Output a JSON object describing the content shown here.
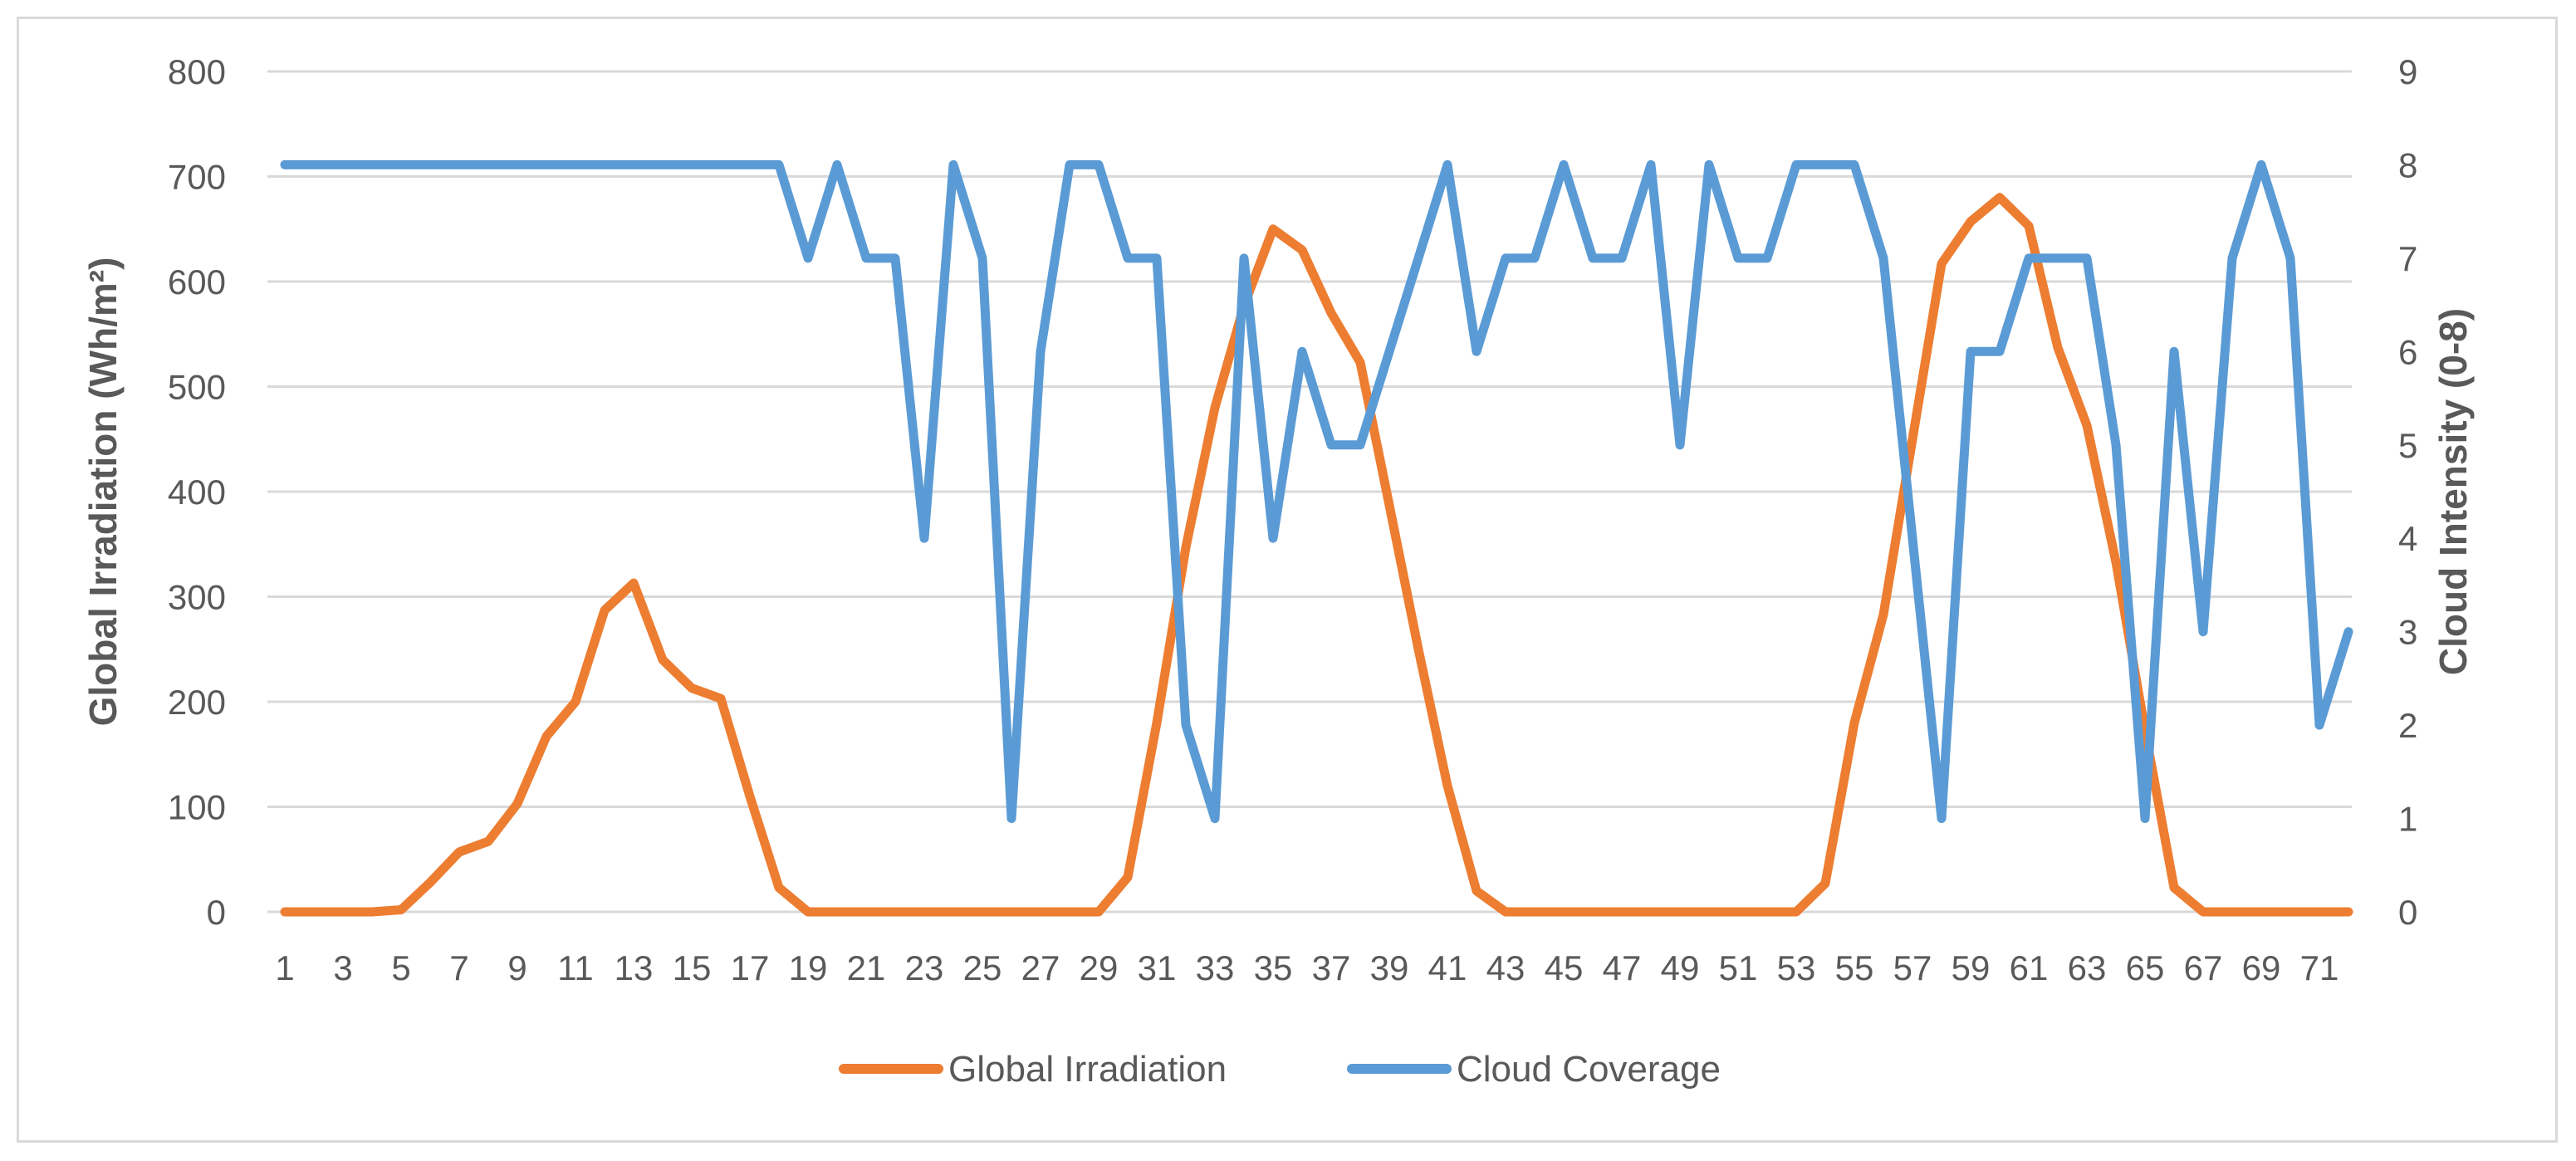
{
  "chart_data": {
    "type": "line",
    "title": "",
    "xlabel": "",
    "ylabel": "Global Irradiation (Wh/m²)",
    "y2label": "Cloud Intensity (0-8)",
    "ylim": [
      0,
      800
    ],
    "y2lim": [
      0,
      9
    ],
    "yticks": [
      "0",
      "100",
      "200",
      "300",
      "400",
      "500",
      "600",
      "700",
      "800"
    ],
    "y2ticks": [
      "0",
      "1",
      "2",
      "3",
      "4",
      "5",
      "6",
      "7",
      "8",
      "9"
    ],
    "x": [
      1,
      2,
      3,
      4,
      5,
      6,
      7,
      8,
      9,
      10,
      11,
      12,
      13,
      14,
      15,
      16,
      17,
      18,
      19,
      20,
      21,
      22,
      23,
      24,
      25,
      26,
      27,
      28,
      29,
      30,
      31,
      32,
      33,
      34,
      35,
      36,
      37,
      38,
      39,
      40,
      41,
      42,
      43,
      44,
      45,
      46,
      47,
      48,
      49,
      50,
      51,
      52,
      53,
      54,
      55,
      56,
      57,
      58,
      59,
      60,
      61,
      62,
      63,
      64,
      65,
      66,
      67,
      68,
      69,
      70,
      71,
      72
    ],
    "xtick_labels": [
      "1",
      "3",
      "5",
      "7",
      "9",
      "11",
      "13",
      "15",
      "17",
      "19",
      "21",
      "23",
      "25",
      "27",
      "29",
      "31",
      "33",
      "35",
      "37",
      "39",
      "41",
      "43",
      "45",
      "47",
      "49",
      "51",
      "53",
      "55",
      "57",
      "59",
      "61",
      "63",
      "65",
      "67",
      "69",
      "71"
    ],
    "grid": true,
    "legend_position": "bottom",
    "series": [
      {
        "name": "Global Irradiation",
        "axis": "left",
        "color": "#ED7D31",
        "values": [
          0,
          0,
          0,
          0,
          2,
          28,
          57,
          67,
          103,
          167,
          200,
          287,
          313,
          240,
          213,
          203,
          110,
          23,
          0,
          0,
          0,
          0,
          0,
          0,
          0,
          0,
          0,
          0,
          0,
          33,
          180,
          347,
          480,
          577,
          650,
          630,
          570,
          523,
          387,
          250,
          120,
          20,
          0,
          0,
          0,
          0,
          0,
          0,
          0,
          0,
          0,
          0,
          0,
          27,
          180,
          283,
          450,
          617,
          657,
          680,
          653,
          537,
          463,
          333,
          173,
          23,
          0,
          0,
          0,
          0,
          0,
          0
        ]
      },
      {
        "name": "Cloud Coverage",
        "axis": "right",
        "color": "#5B9BD5",
        "values": [
          8,
          8,
          8,
          8,
          8,
          8,
          8,
          8,
          8,
          8,
          8,
          8,
          8,
          8,
          8,
          8,
          8,
          8,
          7,
          8,
          7,
          7,
          4,
          8,
          7,
          1,
          6,
          8,
          8,
          7,
          7,
          2,
          1,
          7,
          4,
          6,
          5,
          5,
          6,
          7,
          8,
          6,
          7,
          7,
          8,
          7,
          7,
          8,
          5,
          8,
          7,
          7,
          8,
          8,
          8,
          7,
          4,
          1,
          6,
          6,
          7,
          7,
          7,
          5,
          1,
          6,
          3,
          7,
          8,
          7,
          2,
          3
        ]
      }
    ]
  }
}
